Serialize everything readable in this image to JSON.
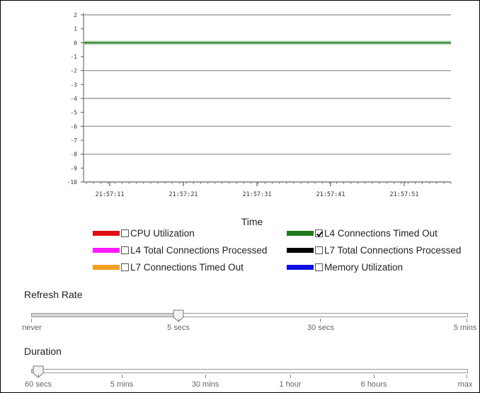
{
  "chart_data": {
    "type": "line",
    "title": "",
    "xlabel": "Time",
    "ylabel": "",
    "ylim": [
      -10,
      2
    ],
    "y_ticks": [
      "2",
      "1",
      "0",
      "-1",
      "-2",
      "-3",
      "-4",
      "-5",
      "-6",
      "-7",
      "-8",
      "-9",
      "-10"
    ],
    "x_ticks": [
      "21:57:11",
      "21:57:21",
      "21:57:31",
      "21:57:41",
      "21:57:51"
    ],
    "grid": true,
    "series": [
      {
        "name": "L4 Connections Timed Out",
        "color": "#2e7d32",
        "values": [
          0,
          0,
          0,
          0,
          0,
          0
        ]
      }
    ]
  },
  "legend": {
    "items": [
      {
        "label": "CPU Utilization",
        "color": "#e01010",
        "checked": false
      },
      {
        "label": "L4 Connections Timed Out",
        "color": "#1f7a1f",
        "checked": true
      },
      {
        "label": "L4 Total Connections Processed",
        "color": "#ff1aff",
        "checked": false
      },
      {
        "label": "L7 Total Connections Processed",
        "color": "#000000",
        "checked": false
      },
      {
        "label": "L7 Connections Timed Out",
        "color": "#f5a020",
        "checked": false
      },
      {
        "label": "Memory Utilization",
        "color": "#1010e0",
        "checked": false
      }
    ]
  },
  "refresh_rate": {
    "label": "Refresh Rate",
    "options": [
      "never",
      "5 secs",
      "30 secs",
      "5 mins"
    ],
    "selected": "5 secs"
  },
  "duration": {
    "label": "Duration",
    "options": [
      "60 secs",
      "5 mins",
      "30 mins",
      "1 hour",
      "6 hours",
      "max"
    ],
    "selected": "60 secs"
  }
}
